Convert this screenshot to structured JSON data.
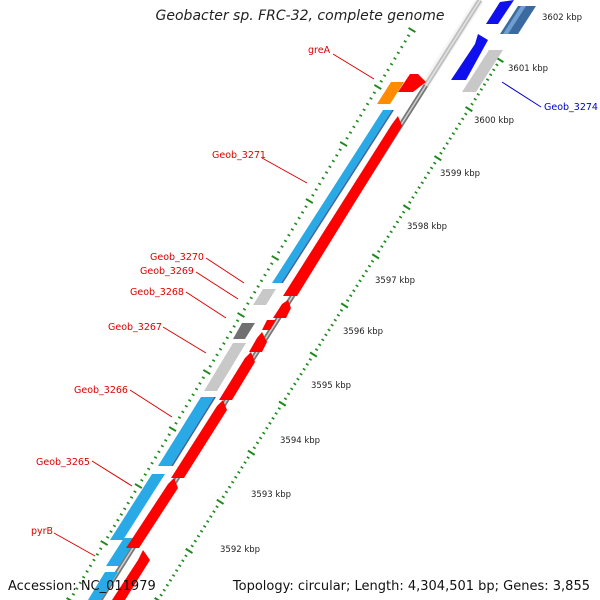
{
  "title": "Geobacter sp. FRC-32, complete genome",
  "accession": "Accession: NC_011979",
  "topology": "Topology: circular; Length: 4,304,501 bp; Genes: 3,855",
  "colors": {
    "forward_gene": "#ff0000",
    "reverse_gene": "#29a9e6",
    "reverse_gene_dark": "#3b6aa0",
    "hypothetical": "#c8c8c8",
    "trna": "#ff8c00",
    "blue_cds": "#1010ee",
    "dark_gray": "#707070",
    "label_red": "#dd0000",
    "label_blue": "#0000cc",
    "tick": "#1e8a1e"
  },
  "scale_labels": [
    "3592 kbp",
    "3593 kbp",
    "3594 kbp",
    "3595 kbp",
    "3596 kbp",
    "3597 kbp",
    "3598 kbp",
    "3599 kbp",
    "3600 kbp",
    "3601 kbp",
    "3602 kbp"
  ],
  "gene_labels": [
    {
      "text": "greA",
      "color": "red"
    },
    {
      "text": "Geob_3271",
      "color": "red"
    },
    {
      "text": "Geob_3270",
      "color": "red"
    },
    {
      "text": "Geob_3269",
      "color": "red"
    },
    {
      "text": "Geob_3268",
      "color": "red"
    },
    {
      "text": "Geob_3267",
      "color": "red"
    },
    {
      "text": "Geob_3266",
      "color": "red"
    },
    {
      "text": "Geob_3265",
      "color": "red"
    },
    {
      "text": "pyrB",
      "color": "red"
    },
    {
      "text": "Geob_3274",
      "color": "blue"
    }
  ]
}
